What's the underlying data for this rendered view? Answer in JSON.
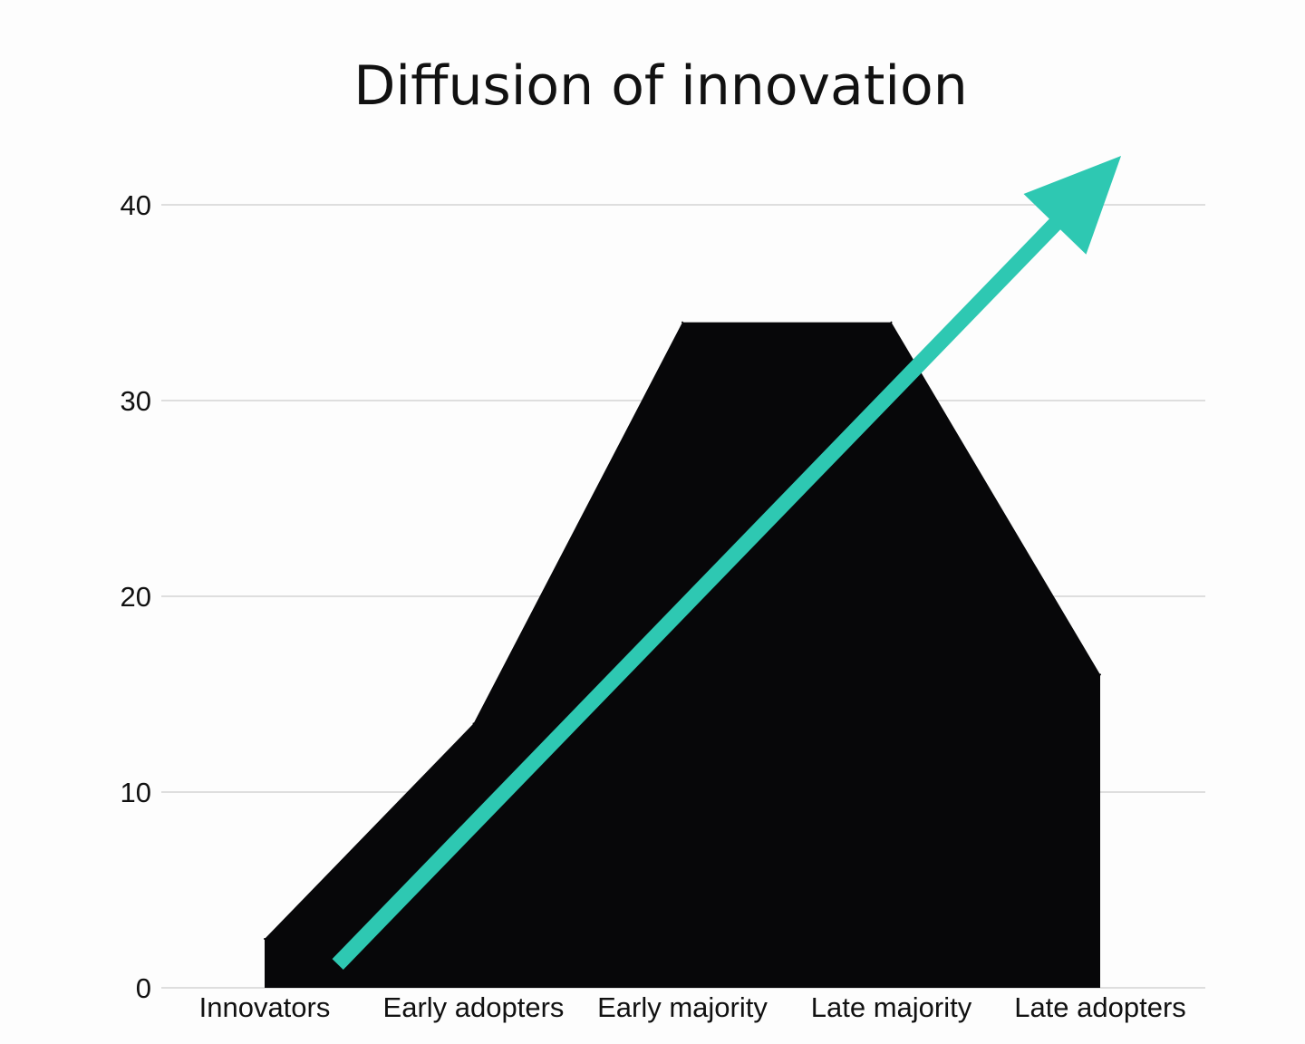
{
  "chart_data": {
    "type": "area",
    "title": "Diffusion of innovation",
    "xlabel": "",
    "ylabel": "",
    "categories": [
      "Innovators",
      "Early adopters",
      "Early majority",
      "Late majority",
      "Late adopters"
    ],
    "values": [
      2.5,
      13.5,
      34,
      34,
      16
    ],
    "ylim": [
      0,
      40
    ],
    "yticks": [
      0,
      10,
      20,
      30,
      40
    ],
    "grid": true,
    "legend": "none",
    "area_color": "#070709",
    "grid_color": "#d4d4d4",
    "annotation": {
      "type": "arrow",
      "color": "#2ec8b2",
      "direction": "up-right",
      "start": {
        "x": 0.35,
        "y": 1.2
      },
      "end": {
        "x": 4.1,
        "y": 42.5
      }
    }
  }
}
